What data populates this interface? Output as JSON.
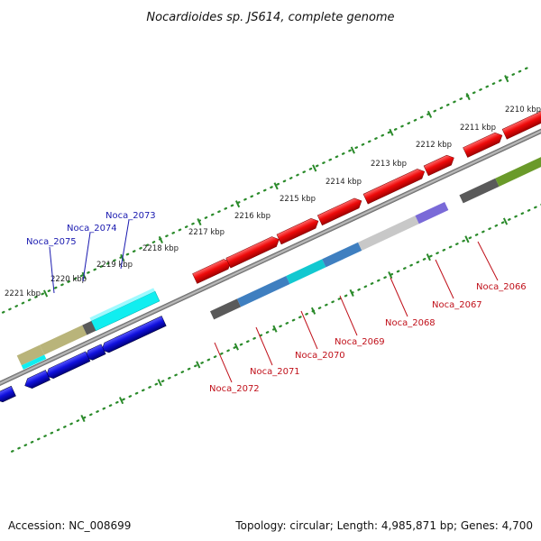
{
  "title": "Nocardioides sp. JS614, complete genome",
  "footer": {
    "accession": "Accession: NC_008699",
    "summary": "Topology: circular; Length: 4,985,871 bp; Genes: 4,700"
  },
  "kbp_labels": [
    "2210 kbp",
    "2211 kbp",
    "2212 kbp",
    "2213 kbp",
    "2214 kbp",
    "2215 kbp",
    "2216 kbp",
    "2217 kbp",
    "2218 kbp",
    "2219 kbp",
    "2220 kbp",
    "2221 kbp"
  ],
  "genes_top": [
    {
      "label": "Noca_2075",
      "color": "#1a1ab0"
    },
    {
      "label": "Noca_2074",
      "color": "#1a1ab0"
    },
    {
      "label": "Noca_2073",
      "color": "#1a1ab0"
    }
  ],
  "genes_bottom": [
    {
      "label": "Noca_2066",
      "color": "#c0101a"
    },
    {
      "label": "Noca_2067",
      "color": "#c0101a"
    },
    {
      "label": "Noca_2068",
      "color": "#c0101a"
    },
    {
      "label": "Noca_2069",
      "color": "#c0101a"
    },
    {
      "label": "Noca_2070",
      "color": "#c0101a"
    },
    {
      "label": "Noca_2071",
      "color": "#c0101a"
    },
    {
      "label": "Noca_2072",
      "color": "#c0101a"
    }
  ],
  "colors": {
    "forward_strand": "#ee0a0a",
    "reverse_strand": "#1010dd",
    "backbone": "#8a8a8a",
    "ruler": "#2a8a2a",
    "cyan": "#10eef0",
    "olive": "#b9b47a",
    "dark_gray": "#5a5a5a",
    "steel_blue": "#3f7fc0",
    "light_gray": "#c8c8c8",
    "violet": "#7a6ad8",
    "green": "#6a9a2a"
  }
}
